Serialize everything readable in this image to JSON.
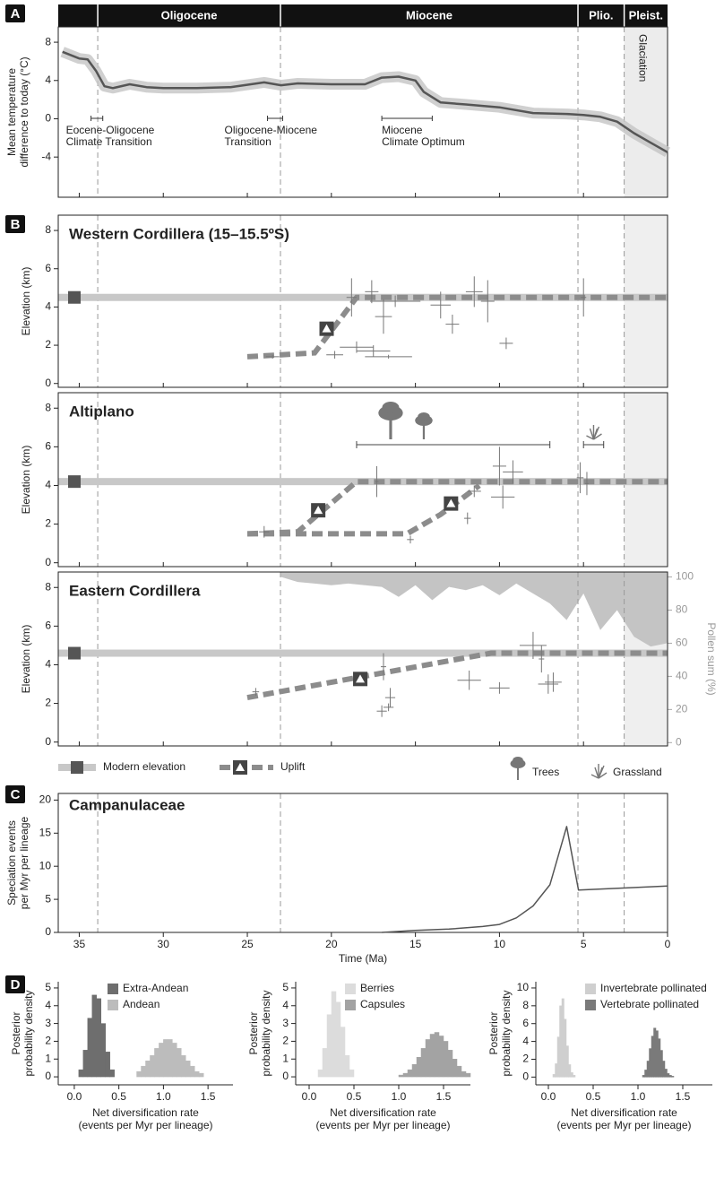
{
  "chart_data": [
    {
      "type": "line",
      "panel": "A",
      "epoch_labels": [
        "Oligocene",
        "Miocene",
        "Plio.",
        "Pleist."
      ],
      "boundaries": [
        33.9,
        23.03,
        5.33,
        2.58
      ],
      "shade_label": "Glaciation",
      "y_label": [
        "Mean temperature",
        "difference to today (°C)"
      ],
      "xlim": [
        36.25,
        0
      ],
      "ylim": [
        -8.2,
        9.6
      ],
      "yticks": [
        -4,
        0,
        4,
        8
      ],
      "color": "#555555",
      "cloud_color": "#c4c4c4",
      "x": [
        36,
        35,
        34.5,
        34,
        33.5,
        33,
        32,
        31,
        30,
        28,
        26,
        24,
        23,
        22,
        20,
        18,
        17,
        16,
        15,
        14.5,
        13.5,
        12,
        10,
        8,
        6,
        5,
        4,
        3,
        2,
        1,
        0
      ],
      "values": [
        7,
        6.3,
        6.2,
        5,
        3.4,
        3.2,
        3.6,
        3.3,
        3.2,
        3.2,
        3.3,
        3.8,
        3.5,
        3.7,
        3.6,
        3.6,
        4.3,
        4.4,
        4,
        2.8,
        1.7,
        1.5,
        1.2,
        0.6,
        0.5,
        0.4,
        0.2,
        -0.3,
        -1.5,
        -2.5,
        -3.5
      ],
      "annotations": [
        {
          "text": [
            "Eocene-Oligocene",
            "Climate Transition"
          ],
          "range": [
            34.3,
            33.6
          ]
        },
        {
          "text": [
            "Oligocene-Miocene",
            "Transition"
          ],
          "range": [
            23.8,
            22.9
          ]
        },
        {
          "text": [
            "Miocene",
            "Climate Optimum"
          ],
          "range": [
            17,
            14
          ]
        }
      ]
    },
    {
      "type": "errorbar",
      "panel": "B",
      "legend": [
        "Modern elevation",
        "Uplift",
        "Trees",
        "Grassland"
      ],
      "colors": {
        "modern": "#c8c8c8",
        "marker": "#555555",
        "uplift": "#8c8c8c",
        "estimate": "#777777",
        "pollen": "#c4c4c4",
        "icon": "#777777"
      },
      "subplots": [
        {
          "title": "Western Cordillera (15–15.5ºS)",
          "xlim": [
            36.25,
            0
          ],
          "ylim": [
            -0.2,
            8.8
          ],
          "yticks": [
            0,
            2,
            4,
            6,
            8
          ],
          "y_label": "Elevation (km)",
          "modern_elevation": 4.5,
          "uplift": [
            {
              "x": [
                25,
                21,
                18.5,
                0
              ],
              "values": [
                1.4,
                1.6,
                4.5,
                4.5
              ]
            }
          ],
          "estimates": [
            {
              "x": 18.8,
              "y": 4.5,
              "xerr": 0.3,
              "yerr": 1
            },
            {
              "x": 17.6,
              "y": 4.8,
              "xerr": 0.4,
              "yerr": 0.6
            },
            {
              "x": 16.9,
              "y": 3.5,
              "xerr": 0.5,
              "yerr": 0.9
            },
            {
              "x": 16.2,
              "y": 4.3,
              "xerr": 1.5,
              "yerr": 0.3
            },
            {
              "x": 13.5,
              "y": 4.1,
              "xerr": 0.6,
              "yerr": 0.7
            },
            {
              "x": 12.8,
              "y": 3.1,
              "xerr": 0.4,
              "yerr": 0.5
            },
            {
              "x": 11.5,
              "y": 4.8,
              "xerr": 0.5,
              "yerr": 0.8
            },
            {
              "x": 10.7,
              "y": 4.3,
              "xerr": 0.4,
              "yerr": 1.1
            },
            {
              "x": 9.6,
              "y": 2.1,
              "xerr": 0.4,
              "yerr": 0.3
            },
            {
              "x": 18.5,
              "y": 1.9,
              "xerr": 1,
              "yerr": 0.3
            },
            {
              "x": 17.5,
              "y": 1.7,
              "xerr": 1,
              "yerr": 0.3
            },
            {
              "x": 16.6,
              "y": 1.4,
              "xerr": 1.4,
              "yerr": 0.1
            },
            {
              "x": 19.8,
              "y": 1.5,
              "xerr": 0.5,
              "yerr": 0.2
            },
            {
              "x": 23.5,
              "y": 1.4,
              "xerr": 0.4,
              "yerr": 0.1
            },
            {
              "x": 5,
              "y": 4.5,
              "xerr": 0,
              "yerr": 1
            }
          ]
        },
        {
          "title": "Altiplano",
          "xlim": [
            36.25,
            0
          ],
          "ylim": [
            -0.2,
            8.8
          ],
          "yticks": [
            0,
            2,
            4,
            6,
            8
          ],
          "y_label": "Elevation (km)",
          "modern_elevation": 4.2,
          "uplift": [
            {
              "x": [
                25,
                22,
                18.5,
                0
              ],
              "values": [
                1.5,
                1.6,
                4.2,
                4.2
              ]
            },
            {
              "x": [
                25,
                15.5,
                13.5,
                11.2
              ],
              "values": [
                1.5,
                1.5,
                2.5,
                4
              ]
            }
          ],
          "estimates": [
            {
              "x": 24,
              "y": 1.6,
              "xerr": 0.3,
              "yerr": 0.3
            },
            {
              "x": 15.3,
              "y": 1.2,
              "xerr": 0.2,
              "yerr": 0.2
            },
            {
              "x": 17.3,
              "y": 4.2,
              "xerr": 0.1,
              "yerr": 0.8
            },
            {
              "x": 11.5,
              "y": 3.7,
              "xerr": 0.4,
              "yerr": 0.3
            },
            {
              "x": 11.9,
              "y": 2.3,
              "xerr": 0.2,
              "yerr": 0.3
            },
            {
              "x": 10,
              "y": 5,
              "xerr": 0.4,
              "yerr": 1
            },
            {
              "x": 9.8,
              "y": 3.4,
              "xerr": 0.7,
              "yerr": 0.6
            },
            {
              "x": 9.2,
              "y": 4.7,
              "xerr": 0.6,
              "yerr": 0.6
            },
            {
              "x": 5.2,
              "y": 4.4,
              "xerr": 0.2,
              "yerr": 0.8
            },
            {
              "x": 4.8,
              "y": 4.1,
              "xerr": 0.1,
              "yerr": 0.6
            }
          ],
          "trees_range": [
            18.5,
            7
          ],
          "grassland_range": [
            5,
            3.8
          ]
        },
        {
          "title": "Eastern Cordillera",
          "xlim": [
            36.25,
            0
          ],
          "ylim": [
            -0.2,
            8.8
          ],
          "yticks": [
            0,
            2,
            4,
            6,
            8
          ],
          "y_label": "Elevation (km)",
          "modern_elevation": 4.6,
          "uplift": [
            {
              "x": [
                25,
                10.5,
                0
              ],
              "values": [
                2.3,
                4.6,
                4.6
              ]
            }
          ],
          "estimates": [
            {
              "x": 24.5,
              "y": 2.6,
              "xerr": 0.2,
              "yerr": 0.2
            },
            {
              "x": 17,
              "y": 1.6,
              "xerr": 0.3,
              "yerr": 0.3
            },
            {
              "x": 16.6,
              "y": 1.8,
              "xerr": 0.3,
              "yerr": 0.2
            },
            {
              "x": 16.5,
              "y": 2.3,
              "xerr": 0.3,
              "yerr": 0.5
            },
            {
              "x": 16.9,
              "y": 3.9,
              "xerr": 0,
              "yerr": 0.7
            },
            {
              "x": 11.8,
              "y": 3.2,
              "xerr": 0.7,
              "yerr": 0.5
            },
            {
              "x": 10,
              "y": 2.8,
              "xerr": 0.6,
              "yerr": 0.3
            },
            {
              "x": 8,
              "y": 5,
              "xerr": 0.8,
              "yerr": 0.7
            },
            {
              "x": 7.5,
              "y": 4.3,
              "xerr": 0,
              "yerr": 0.7
            },
            {
              "x": 7.1,
              "y": 3,
              "xerr": 0.6,
              "yerr": 0.5
            },
            {
              "x": 6.8,
              "y": 3.1,
              "xerr": 0.5,
              "yerr": 0.5
            }
          ],
          "pollen": {
            "x": [
              23,
              22,
              21,
              20,
              19,
              18,
              17,
              16,
              15,
              14,
              13,
              12,
              11,
              10,
              9,
              8,
              7,
              6,
              5,
              4,
              3,
              2,
              1,
              0
            ],
            "values": [
              100,
              97,
              96,
              95,
              96,
              95,
              94,
              88,
              95,
              86,
              94,
              92,
              95,
              89,
              96,
              90,
              84,
              74,
              90,
              68,
              80,
              64,
              58,
              60
            ]
          },
          "y2lim": [
            -2,
            103
          ],
          "y2ticks": [
            0,
            20,
            40,
            60,
            80,
            100
          ],
          "y2_label": "Pollen sum (%)"
        }
      ]
    },
    {
      "type": "line",
      "panel": "C",
      "title": "Campanulaceae",
      "y_label": [
        "Speciation events",
        "per Myr per lineage"
      ],
      "x_label": "Time (Ma)",
      "xlim": [
        36.25,
        0
      ],
      "xticks": [
        35,
        30,
        25,
        20,
        15,
        10,
        5,
        0
      ],
      "ylim": [
        0,
        21
      ],
      "yticks": [
        0,
        5,
        10,
        15,
        20
      ],
      "color": "#555555",
      "x": [
        17,
        15,
        13,
        11,
        10,
        9,
        8,
        7,
        6,
        5.3,
        0
      ],
      "values": [
        0,
        0.3,
        0.5,
        0.9,
        1.2,
        2.2,
        4,
        7.2,
        16,
        6.4,
        7
      ]
    },
    {
      "type": "histogram",
      "panel": "D",
      "subplots": [
        {
          "xlim": [
            -0.18,
            1.78
          ],
          "ylim": [
            -0.45,
            5.35
          ],
          "xticks": [
            {
              "value": 0,
              "label": "0.0"
            },
            0.5,
            {
              "value": 1,
              "label": "1.0"
            },
            1.5
          ],
          "yticks": [
            0,
            1,
            2,
            3,
            4,
            5
          ],
          "y_label": [
            "Posterior",
            "probability density"
          ],
          "x_label": [
            "Net diversification rate",
            "(events per Myr per lineage)"
          ],
          "series": [
            {
              "name": "Extra-Andean",
              "color": "#6e6e6e",
              "bins": [
                0.05,
                0.1,
                0.15,
                0.2,
                0.25,
                0.3,
                0.35,
                0.4,
                0.45
              ],
              "values": [
                0.4,
                1.5,
                3.3,
                4.6,
                4.4,
                3,
                1.4,
                0.4
              ]
            },
            {
              "name": "Andean",
              "color": "#bcbcbc",
              "bins": [
                0.7,
                0.75,
                0.8,
                0.85,
                0.9,
                0.95,
                1,
                1.05,
                1.1,
                1.15,
                1.2,
                1.25,
                1.3,
                1.35,
                1.4,
                1.45
              ],
              "values": [
                0.3,
                0.6,
                0.9,
                1.2,
                1.6,
                1.9,
                2.1,
                2.1,
                1.9,
                1.6,
                1.2,
                0.9,
                0.6,
                0.3,
                0.2
              ]
            }
          ]
        },
        {
          "xlim": [
            -0.15,
            1.8
          ],
          "ylim": [
            -0.45,
            5.35
          ],
          "xticks": [
            {
              "value": 0,
              "label": "0.0"
            },
            0.5,
            {
              "value": 1,
              "label": "1.0"
            },
            1.5
          ],
          "yticks": [
            0,
            1,
            2,
            3,
            4,
            5
          ],
          "y_label": [
            "Posterior",
            "probability density"
          ],
          "x_label": [
            "Net diversification rate",
            "(events per Myr per lineage)"
          ],
          "series": [
            {
              "name": "Berries",
              "color": "#dcdcdc",
              "bins": [
                0.1,
                0.15,
                0.2,
                0.25,
                0.3,
                0.35,
                0.4,
                0.45,
                0.5
              ],
              "values": [
                0.4,
                1.6,
                3.5,
                4.8,
                4.2,
                2.8,
                1.2,
                0.4
              ]
            },
            {
              "name": "Capsules",
              "color": "#a3a3a3",
              "bins": [
                1,
                1.05,
                1.1,
                1.15,
                1.2,
                1.25,
                1.3,
                1.35,
                1.4,
                1.45,
                1.5,
                1.55,
                1.6,
                1.65,
                1.7,
                1.75,
                1.8
              ],
              "values": [
                0.1,
                0.2,
                0.4,
                0.7,
                1.1,
                1.6,
                2.1,
                2.4,
                2.5,
                2.3,
                2,
                1.5,
                1,
                0.6,
                0.3,
                0.2
              ]
            }
          ]
        },
        {
          "xlim": [
            -0.14,
            1.83
          ],
          "ylim": [
            -0.87,
            10.7
          ],
          "xticks": [
            {
              "value": 0,
              "label": "0.0"
            },
            0.5,
            {
              "value": 1,
              "label": "1.0"
            },
            1.5
          ],
          "yticks": [
            0,
            2,
            4,
            6,
            8,
            10
          ],
          "y_label": [
            "Posterior",
            "probability density"
          ],
          "x_label": [
            "Net diversification rate",
            "(events per Myr per lineage)"
          ],
          "series": [
            {
              "name": "Invertebrate pollinated",
              "color": "#cfcfcf",
              "bins": [
                0.05,
                0.075,
                0.1,
                0.125,
                0.15,
                0.175,
                0.2,
                0.225,
                0.25,
                0.275,
                0.3
              ],
              "values": [
                0.3,
                1.5,
                4.5,
                8,
                8.8,
                6.5,
                3.5,
                1.4,
                0.5,
                0.2
              ]
            },
            {
              "name": "Vertebrate pollinated",
              "color": "#7a7a7a",
              "bins": [
                1.05,
                1.075,
                1.1,
                1.125,
                1.15,
                1.175,
                1.2,
                1.225,
                1.25,
                1.275,
                1.3,
                1.325,
                1.35,
                1.375,
                1.4
              ],
              "values": [
                0.2,
                0.8,
                1.8,
                3.2,
                4.6,
                5.5,
                5.2,
                4.3,
                3,
                1.8,
                0.9,
                0.4,
                0.2,
                0.1
              ]
            }
          ]
        }
      ]
    }
  ]
}
